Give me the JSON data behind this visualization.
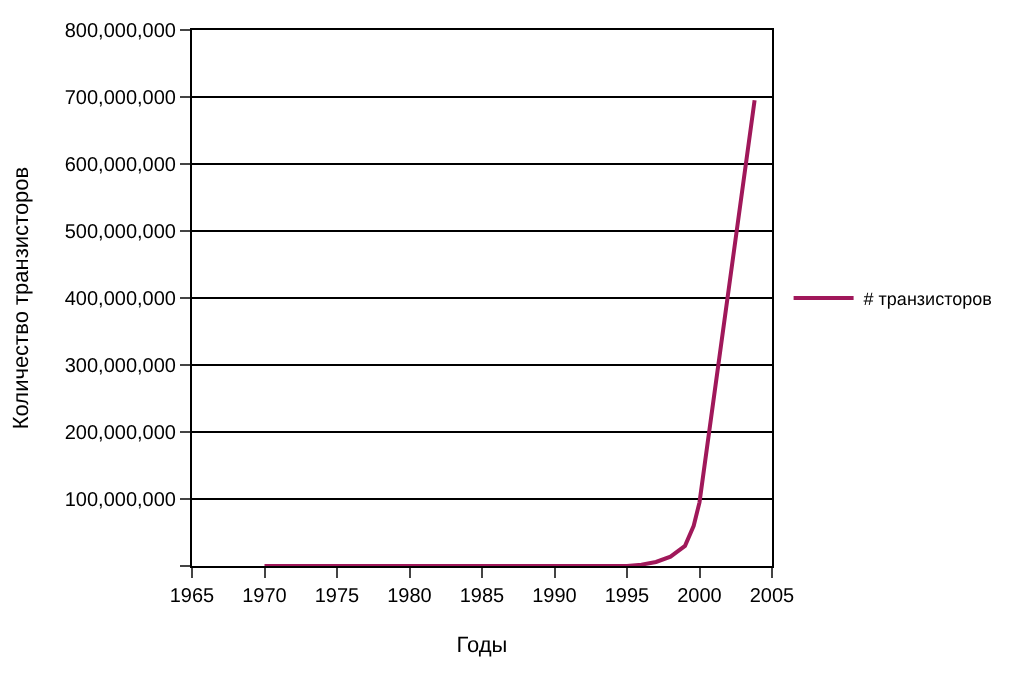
{
  "chart_data": {
    "type": "line",
    "xlabel": "Годы",
    "ylabel": "Количество транзисторов",
    "x": [
      1970,
      1975,
      1980,
      1985,
      1990,
      1995,
      1996,
      1997,
      1998,
      1999,
      1999.6,
      2000,
      2003.8
    ],
    "series": [
      {
        "name": "# транзисторов",
        "color": "#a0185a",
        "values": [
          0,
          0,
          0,
          0,
          0,
          0,
          2000000,
          6000000,
          14000000,
          30000000,
          60000000,
          95000000,
          695000000
        ]
      }
    ],
    "xlim": [
      1965,
      2005
    ],
    "xticks": [
      1965,
      1970,
      1975,
      1980,
      1985,
      1990,
      1995,
      2000,
      2005
    ],
    "ylim": [
      0,
      800000000
    ],
    "yticks": [
      {
        "value": 0,
        "label": null
      },
      {
        "value": 100000000,
        "label": "100,000,000"
      },
      {
        "value": 200000000,
        "label": "200,000,000"
      },
      {
        "value": 300000000,
        "label": "300,000,000"
      },
      {
        "value": 400000000,
        "label": "400,000,000"
      },
      {
        "value": 500000000,
        "label": "500,000,000"
      },
      {
        "value": 600000000,
        "label": "600,000,000"
      },
      {
        "value": 700000000,
        "label": "700,000,000"
      },
      {
        "value": 800000000,
        "label": "800,000,000"
      }
    ],
    "grid": "y",
    "legend": "right",
    "marker": "none",
    "line_style": "solid"
  }
}
